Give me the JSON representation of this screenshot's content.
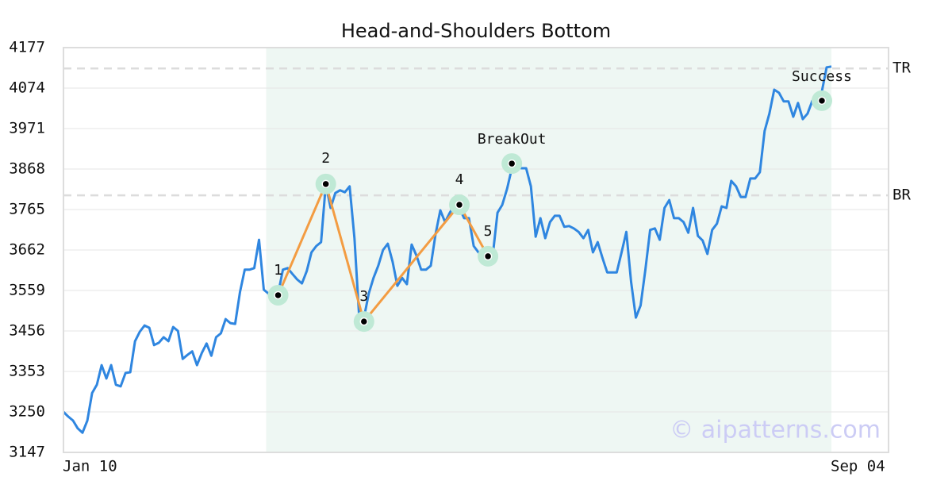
{
  "chart_data": {
    "type": "line",
    "title": "Head-and-Shoulders Bottom",
    "watermark": "© aipatterns.com",
    "categories": [
      "Jan 10",
      null,
      null,
      null,
      null,
      null,
      null,
      null,
      null,
      null,
      null,
      null,
      null,
      null,
      null,
      null,
      null,
      null,
      null,
      null,
      null,
      null,
      null,
      null,
      null,
      null,
      null,
      null,
      null,
      null,
      null,
      null,
      null,
      null,
      null,
      null,
      null,
      null,
      null,
      null,
      null,
      null,
      null,
      null,
      null,
      null,
      null,
      null,
      null,
      null,
      null,
      null,
      null,
      null,
      null,
      null,
      null,
      null,
      null,
      null,
      null,
      null,
      null,
      null,
      null,
      null,
      null,
      null,
      null,
      null,
      null,
      null,
      null,
      null,
      null,
      null,
      null,
      null,
      null,
      null,
      null,
      null,
      null,
      null,
      null,
      null,
      null,
      null,
      null,
      null,
      null,
      null,
      null,
      null,
      null,
      null,
      null,
      null,
      null,
      null,
      null,
      null,
      null,
      null,
      null,
      null,
      null,
      null,
      null,
      null,
      null,
      null,
      null,
      null,
      null,
      null,
      null,
      null,
      null,
      null,
      null,
      null,
      null,
      null,
      null,
      null,
      null,
      null,
      null,
      null,
      null,
      null,
      null,
      null,
      null,
      null,
      null,
      null,
      null,
      null,
      null,
      null,
      null,
      null,
      null,
      null,
      null,
      null,
      null,
      null,
      null,
      null,
      null,
      null,
      null,
      null,
      null,
      null,
      null,
      null,
      null,
      "Sep 04"
    ],
    "series": [
      {
        "color": "#2f86e0",
        "values": [
          3250,
          3238,
          3228,
          3208,
          3197,
          3228,
          3298,
          3319,
          3369,
          3335,
          3369,
          3319,
          3315,
          3349,
          3351,
          3430,
          3454,
          3470,
          3464,
          3420,
          3426,
          3440,
          3430,
          3466,
          3456,
          3385,
          3395,
          3404,
          3369,
          3400,
          3424,
          3393,
          3440,
          3450,
          3486,
          3476,
          3474,
          3555,
          3612,
          3612,
          3616,
          3688,
          3561,
          3551,
          3555,
          3551,
          3612,
          3616,
          3601,
          3587,
          3577,
          3608,
          3656,
          3672,
          3682,
          3830,
          3769,
          3807,
          3814,
          3809,
          3824,
          3692,
          3490,
          3490,
          3551,
          3591,
          3622,
          3662,
          3678,
          3632,
          3571,
          3591,
          3575,
          3676,
          3648,
          3612,
          3612,
          3622,
          3702,
          3763,
          3733,
          3757,
          3777,
          3769,
          3743,
          3743,
          3672,
          3656,
          3652,
          3648,
          3648,
          3757,
          3777,
          3818,
          3870,
          3878,
          3870,
          3870,
          3824,
          3696,
          3743,
          3692,
          3733,
          3749,
          3749,
          3721,
          3723,
          3717,
          3708,
          3692,
          3713,
          3656,
          3682,
          3642,
          3605,
          3605,
          3605,
          3656,
          3708,
          3581,
          3490,
          3521,
          3612,
          3713,
          3717,
          3688,
          3769,
          3789,
          3743,
          3743,
          3733,
          3706,
          3769,
          3698,
          3686,
          3652,
          3713,
          3729,
          3773,
          3769,
          3838,
          3824,
          3797,
          3797,
          3844,
          3844,
          3860,
          3965,
          4009,
          4070,
          4062,
          4040,
          4040,
          4001,
          4036,
          3995,
          4009,
          4042,
          4042,
          4066,
          4127,
          4129
        ]
      }
    ],
    "pattern_color": "#f39c42",
    "pattern_points": [
      {
        "label": "1",
        "index": 45,
        "value": 3547
      },
      {
        "label": "2",
        "index": 55,
        "value": 3830
      },
      {
        "label": "3",
        "index": 63,
        "value": 3480
      },
      {
        "label": "4",
        "index": 83,
        "value": 3777
      },
      {
        "label": "5",
        "index": 89,
        "value": 3646
      }
    ],
    "signal_points": [
      {
        "label": "BreakOut",
        "index": 94,
        "value": 3882
      },
      {
        "label": "Success",
        "index": 159,
        "value": 4042
      }
    ],
    "levels": [
      {
        "label": "TR",
        "value": 4124
      },
      {
        "label": "BR",
        "value": 3801
      }
    ],
    "shaded_range": [
      42.5,
      161
    ],
    "ylim": [
      3147,
      4177
    ],
    "yticks": [
      3147,
      3250,
      3353,
      3456,
      3559,
      3662,
      3765,
      3868,
      3971,
      4074,
      4177
    ],
    "grid": true
  }
}
